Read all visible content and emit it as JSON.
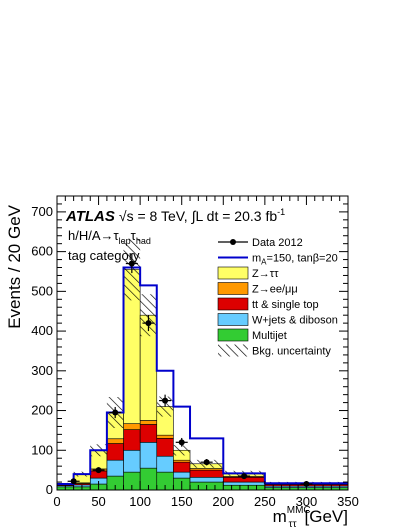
{
  "chart_data": {
    "type": "bar",
    "stacked": true,
    "xlabel": "m",
    "xlabel_super": "MMC",
    "xlabel_sub": "ττ",
    "xlabel_unit": "[GeV]",
    "ylabel": "Events / 20 GeV",
    "xlim": [
      0,
      350
    ],
    "ylim": [
      0,
      740
    ],
    "xticks": [
      0,
      50,
      100,
      150,
      200,
      250,
      300,
      350
    ],
    "yticks": [
      0,
      100,
      200,
      300,
      400,
      500,
      600,
      700
    ],
    "bin_edges": [
      0,
      20,
      40,
      60,
      80,
      100,
      120,
      140,
      160,
      200,
      250,
      350
    ],
    "components": [
      {
        "name": "Multijet",
        "color": "#33cc33",
        "values": [
          8,
          8,
          15,
          35,
          45,
          55,
          45,
          30,
          20,
          12,
          6
        ]
      },
      {
        "name": "W+jets & diboson",
        "color": "#66ccff",
        "values": [
          3,
          5,
          15,
          40,
          55,
          65,
          40,
          15,
          12,
          8,
          4
        ]
      },
      {
        "name": "tt & single top",
        "color": "#dd0000",
        "values": [
          2,
          3,
          18,
          42,
          52,
          45,
          45,
          25,
          18,
          12,
          4
        ]
      },
      {
        "name": "Z→ee/μμ",
        "color": "#ff9900",
        "values": [
          1,
          2,
          5,
          12,
          15,
          10,
          8,
          5,
          4,
          2,
          1
        ]
      },
      {
        "name": "Z→ττ",
        "color": "#ffff66",
        "values": [
          1,
          22,
          47,
          66,
          388,
          265,
          72,
          25,
          12,
          8,
          2
        ]
      }
    ],
    "signal": {
      "name": "m",
      "name_sub": "A",
      "name_rest": "=150, tanβ=20",
      "color": "#0000cc",
      "values": [
        15,
        40,
        100,
        195,
        560,
        515,
        300,
        210,
        130,
        42,
        17
      ]
    },
    "data": {
      "name": "Data 2012",
      "x": [
        20,
        50,
        70,
        90,
        110,
        130,
        150,
        180,
        225,
        300
      ],
      "y": [
        22,
        50,
        195,
        570,
        420,
        225,
        120,
        70,
        35,
        15
      ],
      "yerr": [
        5,
        7,
        14,
        24,
        20,
        15,
        11,
        8,
        6,
        4
      ]
    },
    "uncertainty": {
      "name": "Bkg. uncertainty",
      "rel": [
        0.2,
        0.15,
        0.15,
        0.2,
        0.14,
        0.12,
        0.12,
        0.13,
        0.15,
        0.15,
        0.2
      ]
    },
    "annotations": {
      "atlas": "ATLAS",
      "energy": "√s = 8 TeV,",
      "lumi_prefix": "∫L dt = 20.3 fb",
      "lumi_exp": "-1",
      "process_main": "h/H/A→τ",
      "process_sub1": "lep",
      "process_mid": "τ",
      "process_sub2": "had",
      "category": "tag category"
    }
  }
}
